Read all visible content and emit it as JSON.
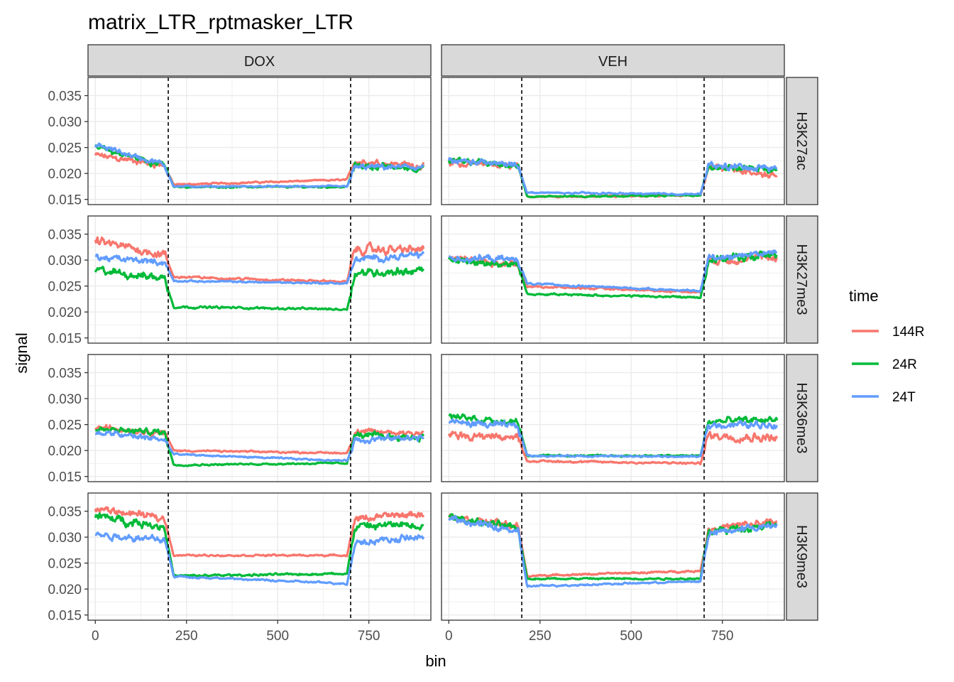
{
  "chart_data": {
    "type": "line",
    "title": "matrix_LTR_rptmasker_LTR",
    "xlabel": "bin",
    "ylabel": "signal",
    "xlim": [
      -20,
      920
    ],
    "ylim": [
      0.014,
      0.0385
    ],
    "x_ticks": [
      0,
      250,
      500,
      750
    ],
    "y_ticks": [
      0.015,
      0.02,
      0.025,
      0.03,
      0.035
    ],
    "y_tick_labels": [
      "0.015",
      "0.020",
      "0.025",
      "0.030",
      "0.035"
    ],
    "vlines": [
      200,
      700
    ],
    "columns": [
      "DOX",
      "VEH"
    ],
    "rows": [
      "H3K27ac",
      "H3K27me3",
      "H3K36me3",
      "H3K9me3"
    ],
    "legend": {
      "title": "time",
      "position": "right",
      "entries": [
        {
          "label": "144R",
          "color": "#F8766D"
        },
        {
          "label": "24R",
          "color": "#00BA38"
        },
        {
          "label": "24T",
          "color": "#619CFF"
        }
      ]
    },
    "series_note": "each series: piecewise levels [bins 0-200 start->end, bins 200-700 start->end, bins 700-900 start->end] + noise amplitude",
    "panels": {
      "DOX": {
        "H3K27ac": {
          "144R": {
            "left": [
              0.0235,
              0.0215
            ],
            "mid": [
              0.0178,
              0.0188
            ],
            "right": [
              0.0225,
              0.0215
            ],
            "noise": 0.0009
          },
          "24R": {
            "left": [
              0.025,
              0.0215
            ],
            "mid": [
              0.0174,
              0.0174
            ],
            "right": [
              0.0215,
              0.021
            ],
            "noise": 0.0009
          },
          "24T": {
            "left": [
              0.0255,
              0.0215
            ],
            "mid": [
              0.0175,
              0.0175
            ],
            "right": [
              0.0212,
              0.0212
            ],
            "noise": 0.0008
          }
        },
        "H3K27me3": {
          "144R": {
            "left": [
              0.0335,
              0.031
            ],
            "mid": [
              0.0268,
              0.0258
            ],
            "right": [
              0.032,
              0.032
            ],
            "noise": 0.0013
          },
          "24R": {
            "left": [
              0.028,
              0.0265
            ],
            "mid": [
              0.021,
              0.0205
            ],
            "right": [
              0.0275,
              0.028
            ],
            "noise": 0.0012
          },
          "24T": {
            "left": [
              0.0305,
              0.0295
            ],
            "mid": [
              0.026,
              0.0255
            ],
            "right": [
              0.03,
              0.031
            ],
            "noise": 0.0009
          }
        },
        "H3K36me3": {
          "144R": {
            "left": [
              0.0245,
              0.0235
            ],
            "mid": [
              0.02,
              0.0195
            ],
            "right": [
              0.0235,
              0.0235
            ],
            "noise": 0.0009
          },
          "24R": {
            "left": [
              0.024,
              0.0235
            ],
            "mid": [
              0.0172,
              0.0176
            ],
            "right": [
              0.023,
              0.0225
            ],
            "noise": 0.0009
          },
          "24T": {
            "left": [
              0.0235,
              0.022
            ],
            "mid": [
              0.0193,
              0.018
            ],
            "right": [
              0.022,
              0.0225
            ],
            "noise": 0.0009
          }
        },
        "H3K9me3": {
          "144R": {
            "left": [
              0.0355,
              0.0335
            ],
            "mid": [
              0.0265,
              0.0265
            ],
            "right": [
              0.0335,
              0.0345
            ],
            "noise": 0.001
          },
          "24R": {
            "left": [
              0.034,
              0.032
            ],
            "mid": [
              0.0225,
              0.023
            ],
            "right": [
              0.032,
              0.0325
            ],
            "noise": 0.0012
          },
          "24T": {
            "left": [
              0.0305,
              0.0295
            ],
            "mid": [
              0.0225,
              0.021
            ],
            "right": [
              0.029,
              0.03
            ],
            "noise": 0.001
          }
        }
      },
      "VEH": {
        "H3K27ac": {
          "144R": {
            "left": [
              0.022,
              0.0215
            ],
            "mid": [
              0.0155,
              0.0158
            ],
            "right": [
              0.0215,
              0.0195
            ],
            "noise": 0.001
          },
          "24R": {
            "left": [
              0.0225,
              0.0215
            ],
            "mid": [
              0.0155,
              0.0158
            ],
            "right": [
              0.0215,
              0.0205
            ],
            "noise": 0.0009
          },
          "24T": {
            "left": [
              0.0225,
              0.0215
            ],
            "mid": [
              0.0163,
              0.016
            ],
            "right": [
              0.0215,
              0.021
            ],
            "noise": 0.0009
          }
        },
        "H3K27me3": {
          "144R": {
            "left": [
              0.0305,
              0.029
            ],
            "mid": [
              0.025,
              0.0238
            ],
            "right": [
              0.03,
              0.0305
            ],
            "noise": 0.0011
          },
          "24R": {
            "left": [
              0.03,
              0.029
            ],
            "mid": [
              0.0235,
              0.0228
            ],
            "right": [
              0.03,
              0.031
            ],
            "noise": 0.0011
          },
          "24T": {
            "left": [
              0.0305,
              0.03
            ],
            "mid": [
              0.0255,
              0.024
            ],
            "right": [
              0.0305,
              0.0315
            ],
            "noise": 0.001
          }
        },
        "H3K36me3": {
          "144R": {
            "left": [
              0.023,
              0.0225
            ],
            "mid": [
              0.018,
              0.0175
            ],
            "right": [
              0.023,
              0.0225
            ],
            "noise": 0.0012
          },
          "24R": {
            "left": [
              0.0265,
              0.0255
            ],
            "mid": [
              0.019,
              0.019
            ],
            "right": [
              0.0255,
              0.026
            ],
            "noise": 0.001
          },
          "24T": {
            "left": [
              0.0255,
              0.0245
            ],
            "mid": [
              0.019,
              0.0188
            ],
            "right": [
              0.025,
              0.025
            ],
            "noise": 0.001
          }
        },
        "H3K9me3": {
          "144R": {
            "left": [
              0.034,
              0.032
            ],
            "mid": [
              0.0225,
              0.0235
            ],
            "right": [
              0.0315,
              0.033
            ],
            "noise": 0.001
          },
          "24R": {
            "left": [
              0.034,
              0.0315
            ],
            "mid": [
              0.022,
              0.022
            ],
            "right": [
              0.031,
              0.0325
            ],
            "noise": 0.001
          },
          "24T": {
            "left": [
              0.0335,
              0.031
            ],
            "mid": [
              0.0205,
              0.0215
            ],
            "right": [
              0.0305,
              0.0325
            ],
            "noise": 0.001
          }
        }
      }
    }
  }
}
